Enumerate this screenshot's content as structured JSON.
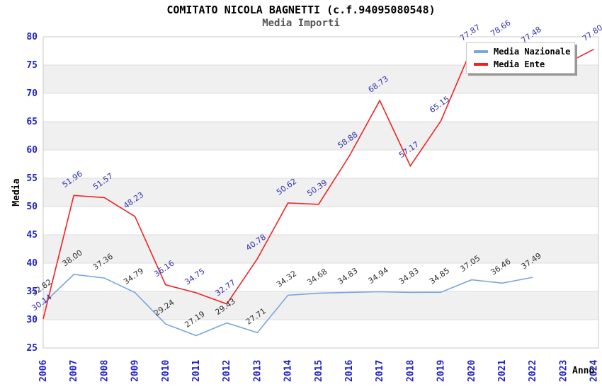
{
  "chart_data": {
    "type": "line",
    "title": "COMITATO NICOLA BAGNETTI (c.f.94095080548)",
    "subtitle": "Media Importi",
    "xlabel": "Anno",
    "ylabel": "Media",
    "ylim": [
      25,
      80
    ],
    "ytick_step": 5,
    "grid": "horizontal-bands-alternating",
    "legend_position": "top-right",
    "x_ticks": [
      "2006",
      "2007",
      "2008",
      "2009",
      "2010",
      "2011",
      "2012",
      "2013",
      "2014",
      "2015",
      "2016",
      "2017",
      "2018",
      "2019",
      "2020",
      "2021",
      "2022",
      "2023",
      "2024"
    ],
    "series": [
      {
        "name": "Media Nazionale",
        "color": "#79A7DC",
        "label_color": "#333333",
        "x": [
          2006,
          2007,
          2008,
          2009,
          2010,
          2011,
          2012,
          2013,
          2014,
          2015,
          2016,
          2017,
          2018,
          2019,
          2020,
          2021,
          2022
        ],
        "values": [
          32.82,
          38.0,
          37.36,
          34.79,
          29.24,
          27.19,
          29.43,
          27.71,
          34.32,
          34.68,
          34.83,
          34.94,
          34.83,
          34.85,
          37.05,
          36.46,
          37.49
        ],
        "labels": [
          "32.82",
          "38.00",
          "37.36",
          "34.79",
          "29.24",
          "27.19",
          "29.43",
          "27.71",
          "34.32",
          "34.68",
          "34.83",
          "34.94",
          "34.83",
          "34.85",
          "37.05",
          "36.46",
          "37.49"
        ]
      },
      {
        "name": "Media Ente",
        "color": "#EE2424",
        "label_color": "#3333AA",
        "x": [
          2006,
          2007,
          2008,
          2009,
          2010,
          2011,
          2012,
          2013,
          2014,
          2015,
          2016,
          2017,
          2018,
          2019,
          2020,
          2021,
          2022,
          2023,
          2024
        ],
        "values": [
          30.14,
          51.96,
          51.57,
          48.23,
          36.16,
          34.75,
          32.77,
          40.78,
          50.62,
          50.39,
          58.88,
          68.73,
          57.17,
          65.15,
          77.87,
          78.66,
          77.48,
          75.0,
          77.8
        ],
        "labels": [
          "30.14",
          "51.96",
          "51.57",
          "48.23",
          "36.16",
          "34.75",
          "32.77",
          "40.78",
          "50.62",
          "50.39",
          "58.88",
          "68.73",
          "57.17",
          "65.15",
          "77.87",
          "78.66",
          "77.48",
          "",
          "77.80"
        ]
      }
    ],
    "colors": {
      "tick_label": "#2222CC",
      "axis_title": "#000000",
      "title": "#000000",
      "subtitle": "#555555",
      "band": "#F0F0F0",
      "gridline": "#DCDCDC",
      "frame": "#C8C8C8",
      "background": "#FFFFFF"
    }
  }
}
